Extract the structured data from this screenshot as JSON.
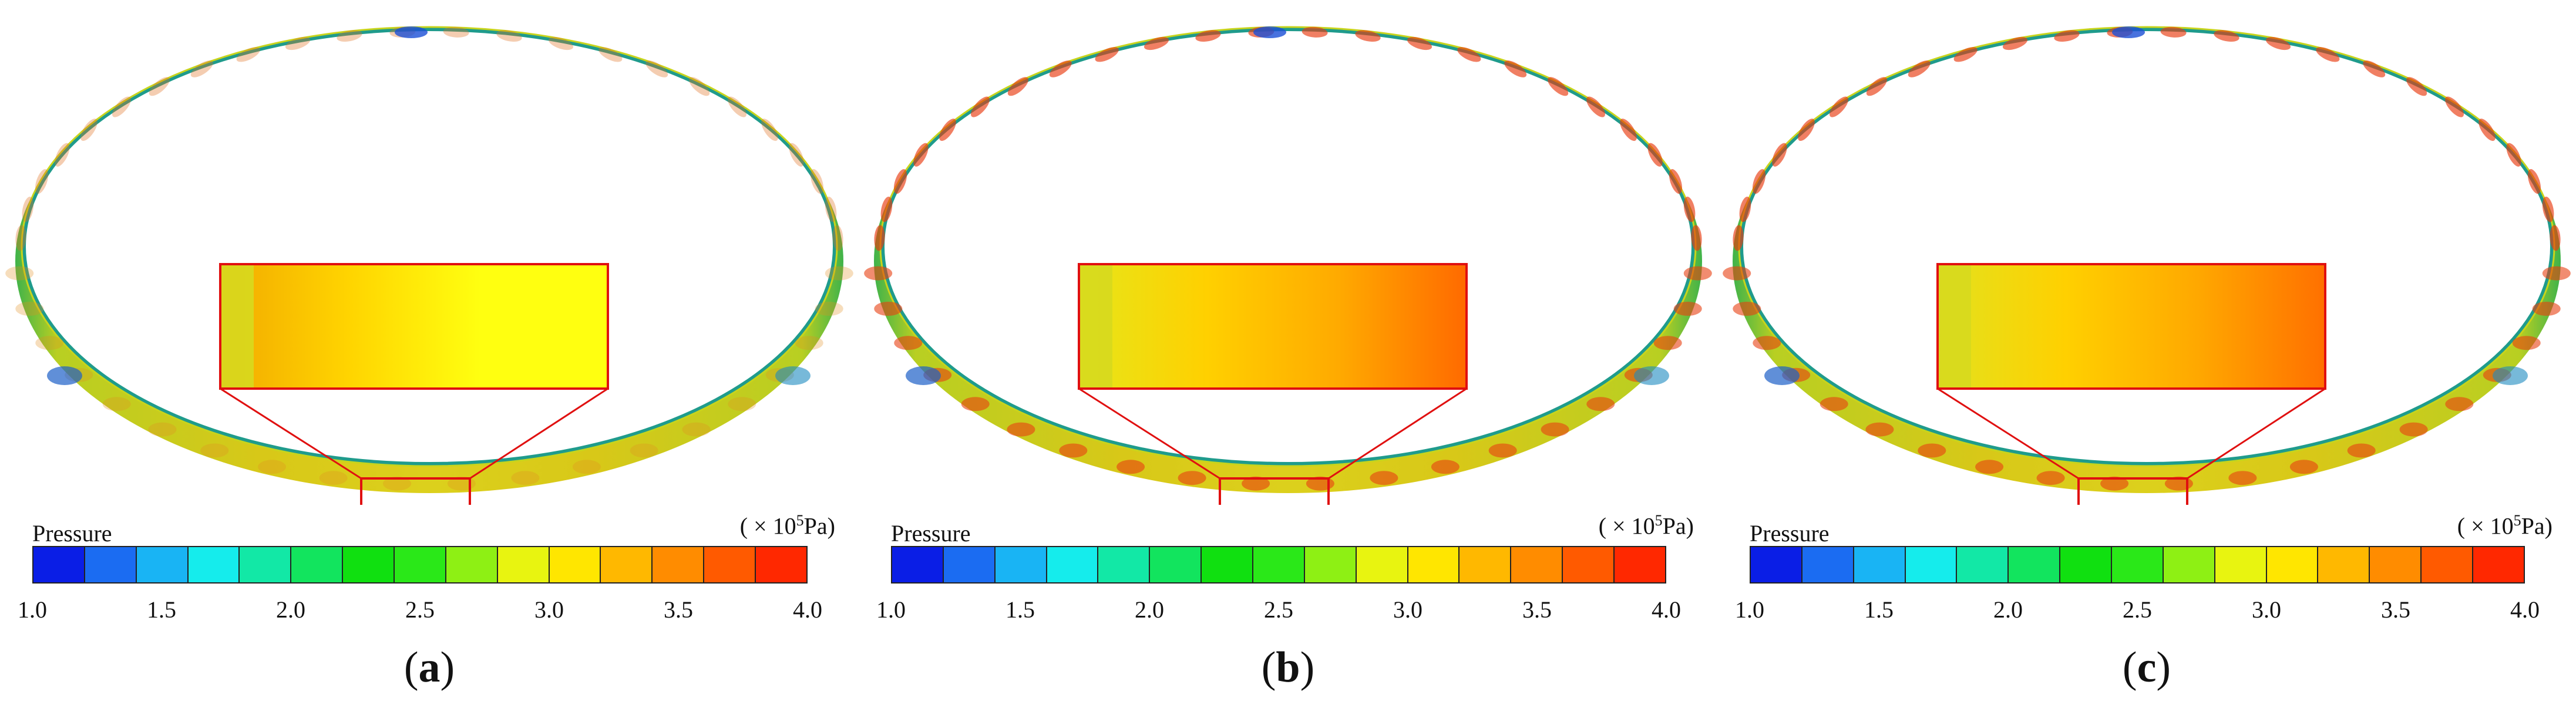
{
  "legend": {
    "title": "Pressure",
    "unit_prefix": "( × 10",
    "unit_exp": "5",
    "unit_suffix": "Pa)",
    "ticks": [
      "1.0",
      "1.5",
      "2.0",
      "2.5",
      "3.0",
      "3.5",
      "4.0"
    ],
    "colors": [
      "#0a1ee6",
      "#1b6cf2",
      "#19b4f4",
      "#15ecec",
      "#12e8a6",
      "#12e45e",
      "#10e010",
      "#2ae818",
      "#8ef014",
      "#e8f410",
      "#ffe600",
      "#ffb800",
      "#ff8c00",
      "#ff5a00",
      "#ff2800"
    ]
  },
  "panels": [
    {
      "label": "a",
      "inset_gradient": [
        "#f2a900",
        "#ffd400",
        "#ffff10",
        "#ffff10"
      ]
    },
    {
      "label": "b",
      "inset_gradient": [
        "#e6e61a",
        "#ffd000",
        "#ffaa00",
        "#ff6a00"
      ]
    },
    {
      "label": "c",
      "inset_gradient": [
        "#e2e21e",
        "#ffd000",
        "#ffa800",
        "#ff7000"
      ]
    }
  ]
}
